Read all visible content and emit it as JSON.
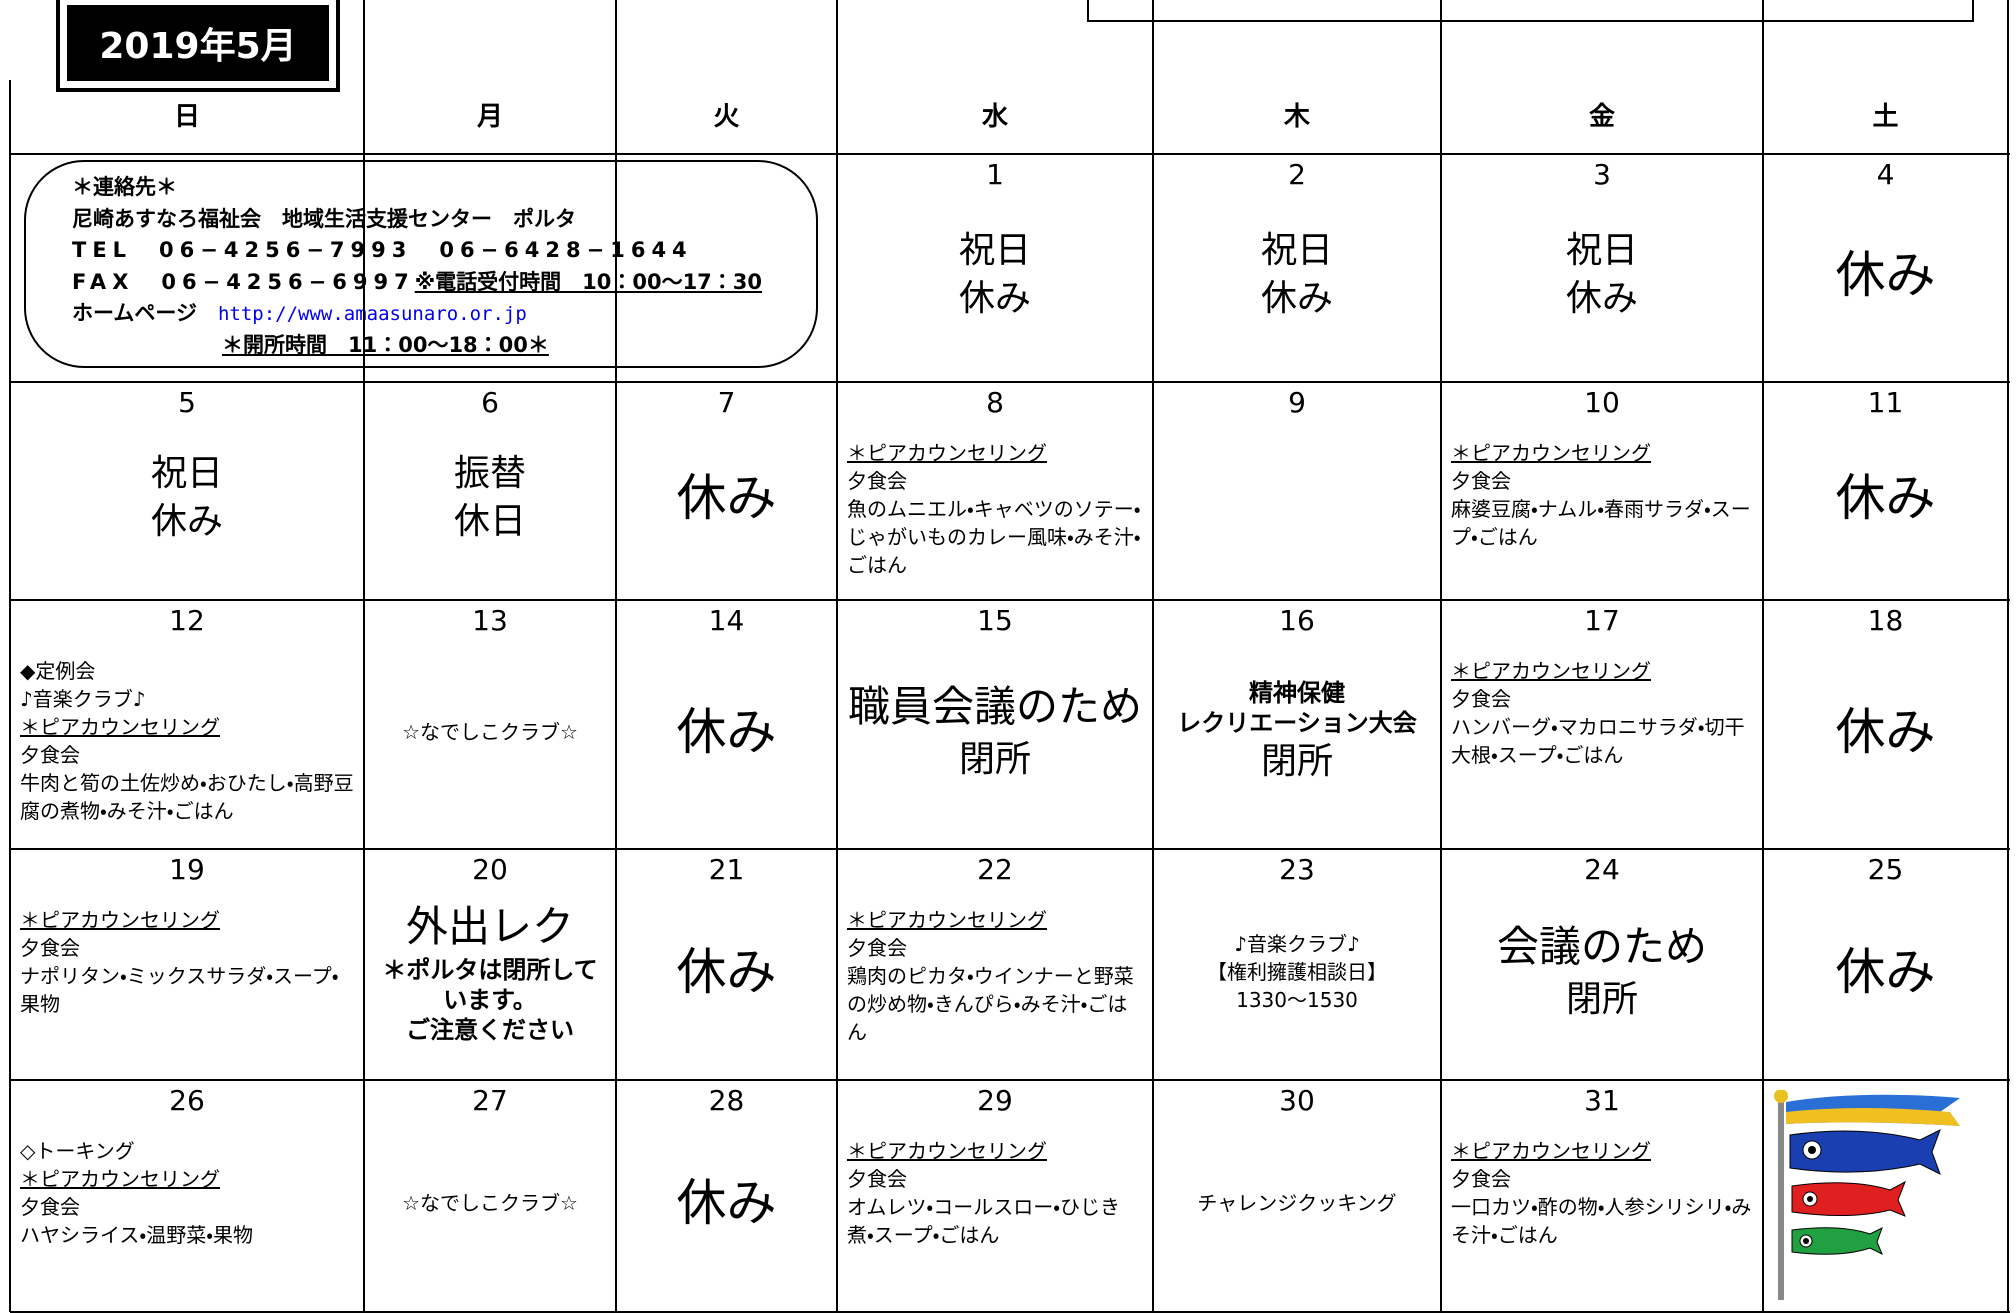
{
  "header": {
    "month": "2019年5月"
  },
  "weekdays": [
    "日",
    "月",
    "火",
    "水",
    "木",
    "金",
    "土"
  ],
  "contact": {
    "title": "＊連絡先＊",
    "org": "尼崎あすなろ福祉会　地域生活支援センター　ポルタ",
    "tel": "TEL　06−4256−7993　06−6428−1644",
    "fax": "FAX　06−4256−6997",
    "hours_note": "※電話受付時間　10：00〜17：30",
    "homepage_label": "ホームページ",
    "url": "http://www.amaasunaro.or.jp",
    "open_hours": "＊開所時間　11：00〜18：00＊"
  },
  "weeks": [
    [
      {
        "day": 1,
        "blocks": [
          {
            "text": "祝日",
            "style": "mid"
          },
          {
            "text": "休み",
            "style": "mid"
          }
        ]
      },
      {
        "day": 2,
        "blocks": [
          {
            "text": "祝日",
            "style": "mid"
          },
          {
            "text": "休み",
            "style": "mid"
          }
        ]
      },
      {
        "day": 3,
        "blocks": [
          {
            "text": "祝日",
            "style": "mid"
          },
          {
            "text": "休み",
            "style": "mid"
          }
        ]
      },
      {
        "day": 4,
        "blocks": [
          {
            "text": "休み",
            "style": "big"
          }
        ]
      }
    ],
    [
      {
        "day": 5,
        "blocks": [
          {
            "text": "祝日",
            "style": "mid"
          },
          {
            "text": "休み",
            "style": "mid"
          }
        ]
      },
      {
        "day": 6,
        "blocks": [
          {
            "text": "振替",
            "style": "mid"
          },
          {
            "text": "休日",
            "style": "mid"
          }
        ]
      },
      {
        "day": 7,
        "blocks": [
          {
            "text": "休み",
            "style": "big"
          }
        ]
      },
      {
        "day": 8,
        "blocks": [
          {
            "text": "＊ピアカウンセリング",
            "style": "note",
            "underline": true
          },
          {
            "text": "夕食会",
            "style": "note"
          },
          {
            "text": "魚のムニエル・キャベツのソテー・じゃがいものカレー風味・みそ汁・ごはん",
            "style": "note"
          }
        ]
      },
      {
        "day": 9,
        "blocks": []
      },
      {
        "day": 10,
        "blocks": [
          {
            "text": "＊ピアカウンセリング",
            "style": "note",
            "underline": true
          },
          {
            "text": "夕食会",
            "style": "note"
          },
          {
            "text": "麻婆豆腐・ナムル・春雨サラダ・スープ・ごはん",
            "style": "note"
          }
        ]
      },
      {
        "day": 11,
        "blocks": [
          {
            "text": "休み",
            "style": "big"
          }
        ]
      }
    ],
    [
      {
        "day": 12,
        "blocks": [
          {
            "text": "◆定例会",
            "style": "note"
          },
          {
            "text": "♪音楽クラブ♪",
            "style": "note"
          },
          {
            "text": "＊ピアカウンセリング",
            "style": "note",
            "underline": true
          },
          {
            "text": "夕食会",
            "style": "note"
          },
          {
            "text": "牛肉と筍の土佐炒め・おひたし・高野豆腐の煮物・みそ汁・ごはん",
            "style": "note"
          }
        ]
      },
      {
        "day": 13,
        "blocks": [
          {
            "text": "☆なでしこクラブ☆",
            "style": "notec"
          }
        ]
      },
      {
        "day": 14,
        "blocks": [
          {
            "text": "休み",
            "style": "big"
          }
        ]
      },
      {
        "day": 15,
        "blocks": [
          {
            "text": "職員会議のため",
            "style": "head"
          },
          {
            "text": "閉所",
            "style": "mid"
          }
        ]
      },
      {
        "day": 16,
        "blocks": [
          {
            "text": "精神保健",
            "style": "bold"
          },
          {
            "text": "レクリエーション大会",
            "style": "bold"
          },
          {
            "text": "閉所",
            "style": "mid"
          }
        ]
      },
      {
        "day": 17,
        "blocks": [
          {
            "text": "＊ピアカウンセリング",
            "style": "note",
            "underline": true
          },
          {
            "text": "夕食会",
            "style": "note"
          },
          {
            "text": "ハンバーグ・マカロニサラダ・切干大根・スープ・ごはん",
            "style": "note"
          }
        ]
      },
      {
        "day": 18,
        "blocks": [
          {
            "text": "休み",
            "style": "big"
          }
        ]
      }
    ],
    [
      {
        "day": 19,
        "blocks": [
          {
            "text": "＊ピアカウンセリング",
            "style": "note",
            "underline": true
          },
          {
            "text": "夕食会",
            "style": "note"
          },
          {
            "text": "ナポリタン・ミックスサラダ・スープ・果物",
            "style": "note"
          }
        ]
      },
      {
        "day": 20,
        "blocks": [
          {
            "text": "外出レク",
            "style": "head"
          },
          {
            "text": "＊ポルタは閉所しています。",
            "style": "bold"
          },
          {
            "text": "ご注意ください",
            "style": "bold"
          }
        ]
      },
      {
        "day": 21,
        "blocks": [
          {
            "text": "休み",
            "style": "big"
          }
        ]
      },
      {
        "day": 22,
        "blocks": [
          {
            "text": "＊ピアカウンセリング",
            "style": "note",
            "underline": true
          },
          {
            "text": "夕食会",
            "style": "note"
          },
          {
            "text": "鶏肉のピカタ・ウインナーと野菜の炒め物・きんぴら・みそ汁・ごはん",
            "style": "note"
          }
        ]
      },
      {
        "day": 23,
        "blocks": [
          {
            "text": "♪音楽クラブ♪",
            "style": "notec"
          },
          {
            "text": "【権利擁護相談日】",
            "style": "notec"
          },
          {
            "text": "1330〜1530",
            "style": "notec"
          }
        ]
      },
      {
        "day": 24,
        "blocks": [
          {
            "text": "会議のため",
            "style": "head"
          },
          {
            "text": "閉所",
            "style": "mid"
          }
        ]
      },
      {
        "day": 25,
        "blocks": [
          {
            "text": "休み",
            "style": "big"
          }
        ]
      }
    ],
    [
      {
        "day": 26,
        "blocks": [
          {
            "text": "◇トーキング",
            "style": "note"
          },
          {
            "text": "＊ピアカウンセリング",
            "style": "note",
            "underline": true
          },
          {
            "text": "夕食会",
            "style": "note"
          },
          {
            "text": "ハヤシライス・温野菜・果物",
            "style": "note"
          }
        ]
      },
      {
        "day": 27,
        "blocks": [
          {
            "text": "☆なでしこクラブ☆",
            "style": "notec"
          }
        ]
      },
      {
        "day": 28,
        "blocks": [
          {
            "text": "休み",
            "style": "big"
          }
        ]
      },
      {
        "day": 29,
        "blocks": [
          {
            "text": "＊ピアカウンセリング",
            "style": "note",
            "underline": true
          },
          {
            "text": "夕食会",
            "style": "note"
          },
          {
            "text": "オムレツ・コールスロー・ひじき煮・スープ・ごはん",
            "style": "note"
          }
        ]
      },
      {
        "day": 30,
        "blocks": [
          {
            "text": "チャレンジクッキング",
            "style": "notec"
          }
        ]
      },
      {
        "day": 31,
        "blocks": [
          {
            "text": "＊ピアカウンセリング",
            "style": "note",
            "underline": true
          },
          {
            "text": "夕食会",
            "style": "note"
          },
          {
            "text": "一口カツ・酢の物・人参シリシリ・みそ汁・ごはん",
            "style": "note"
          }
        ]
      }
    ]
  ]
}
